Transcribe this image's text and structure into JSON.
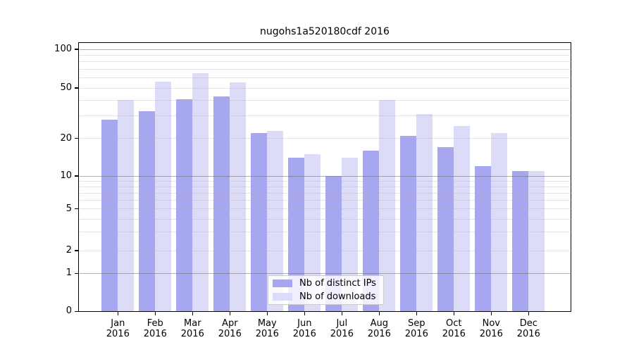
{
  "title": "nugohs1a520180cdf 2016",
  "chart_data": {
    "type": "bar",
    "title": "nugohs1a520180cdf 2016",
    "categories": [
      "Jan",
      "Feb",
      "Mar",
      "Apr",
      "May",
      "Jun",
      "Jul",
      "Aug",
      "Sep",
      "Oct",
      "Nov",
      "Dec"
    ],
    "x_axis": {
      "year_label": "2016"
    },
    "series": [
      {
        "name": "Nb of distinct IPs",
        "color": "#a7a7f1",
        "values": [
          28,
          33,
          41,
          43,
          22,
          14,
          10,
          16,
          21,
          17,
          12,
          11
        ]
      },
      {
        "name": "Nb of downloads",
        "color": "#dcdcf8",
        "values": [
          40,
          56,
          65,
          55,
          23,
          15,
          14,
          40,
          31,
          25,
          22,
          11
        ]
      }
    ],
    "y_axis": {
      "scale": "log-like (symlog, 0 at baseline)",
      "ticks": [
        100,
        50,
        20,
        10,
        5,
        2,
        1,
        0
      ],
      "decade_gridlines": [
        100,
        10,
        1
      ],
      "minor_gridlines": [
        90,
        80,
        70,
        60,
        50,
        40,
        30,
        20,
        9,
        8,
        7,
        6,
        5,
        4,
        3,
        2
      ],
      "range": [
        0,
        113
      ]
    },
    "legend_position": "lower center",
    "grid": true,
    "colors": {
      "decade_grid": "rgba(110,110,110,0.55)",
      "minor_grid": "rgba(175,175,185,0.35)",
      "spine": "#000000",
      "legend_border": "#cccccc"
    }
  }
}
